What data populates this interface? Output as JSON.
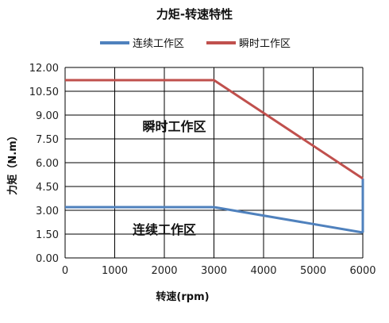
{
  "chart_data": {
    "type": "line",
    "title": "力矩-转速特性",
    "xlabel": "转速(rpm)",
    "ylabel": "力矩（N.m）",
    "xlim": [
      0,
      6000
    ],
    "ylim": [
      0,
      12
    ],
    "x_ticks": [
      "0",
      "1000",
      "2000",
      "3000",
      "4000",
      "5000",
      "6000"
    ],
    "y_ticks": [
      "0.00",
      "1.50",
      "3.00",
      "4.50",
      "6.00",
      "7.50",
      "9.00",
      "10.50",
      "12.00"
    ],
    "grid": true,
    "legend_position": "top",
    "series": [
      {
        "name": "连续工作区",
        "color": "#4F81BD",
        "points": [
          [
            0,
            3.2
          ],
          [
            3000,
            3.2
          ],
          [
            6000,
            1.6
          ]
        ],
        "closing_segment": [
          [
            6000,
            1.6
          ],
          [
            6000,
            5.0
          ]
        ]
      },
      {
        "name": "瞬时工作区",
        "color": "#C0504D",
        "points": [
          [
            0,
            11.2
          ],
          [
            3000,
            11.2
          ],
          [
            6000,
            5.0
          ]
        ]
      }
    ],
    "annotations": [
      {
        "text": "瞬时工作区",
        "x": 2200,
        "y": 8.0
      },
      {
        "text": "连续工作区",
        "x": 2000,
        "y": 1.5
      }
    ]
  }
}
